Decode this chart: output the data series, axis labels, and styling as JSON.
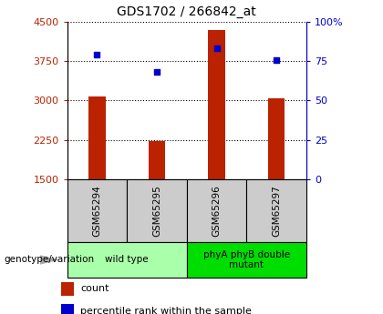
{
  "title": "GDS1702 / 266842_at",
  "samples": [
    "GSM65294",
    "GSM65295",
    "GSM65296",
    "GSM65297"
  ],
  "counts": [
    3080,
    2220,
    4350,
    3050
  ],
  "percentiles": [
    79,
    68,
    83,
    76
  ],
  "ylim_left": [
    1500,
    4500
  ],
  "ylim_right": [
    0,
    100
  ],
  "yticks_left": [
    1500,
    2250,
    3000,
    3750,
    4500
  ],
  "yticks_right": [
    0,
    25,
    50,
    75,
    100
  ],
  "ytick_labels_right": [
    "0",
    "25",
    "50",
    "75",
    "100%"
  ],
  "bar_color": "#bb2200",
  "dot_color": "#0000cc",
  "bar_width": 0.28,
  "groups": [
    {
      "label": "wild type",
      "samples": [
        0,
        1
      ],
      "color": "#aaffaa"
    },
    {
      "label": "phyA phyB double\nmutant",
      "samples": [
        2,
        3
      ],
      "color": "#00dd00"
    }
  ],
  "legend_count_label": "count",
  "legend_pct_label": "percentile rank within the sample",
  "genotype_label": "genotype/variation",
  "sample_box_color": "#cccccc",
  "title_fontsize": 10,
  "tick_fontsize": 8,
  "label_fontsize": 7.5
}
